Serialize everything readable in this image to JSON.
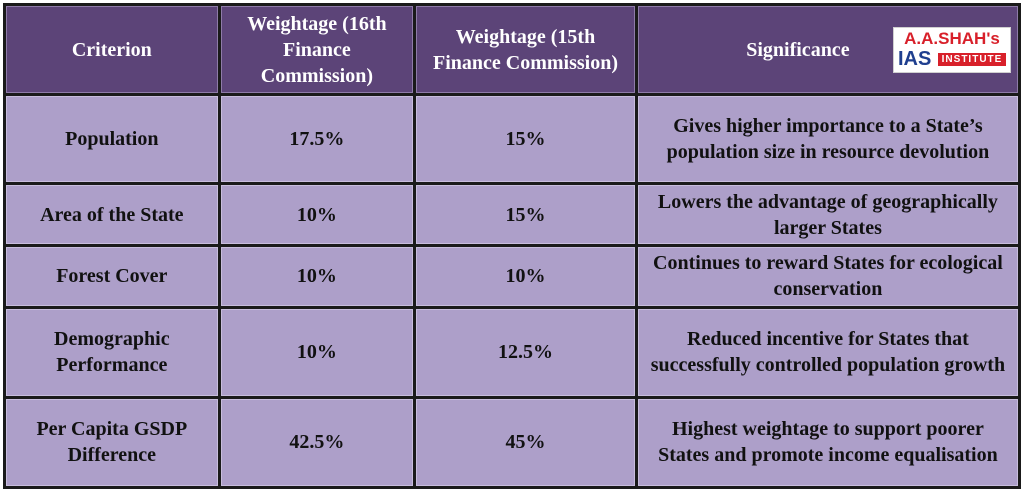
{
  "table": {
    "headers": {
      "criterion": "Criterion",
      "weight16": "Weightage (16th Finance Commission)",
      "weight15": "Weightage (15th Finance Commission)",
      "significance": "Significance"
    },
    "rows": [
      {
        "criterion": "Population",
        "weight16": "17.5%",
        "weight15": "15%",
        "significance": "Gives higher importance to a State’s population size in resource devolution"
      },
      {
        "criterion": "Area of the State",
        "weight16": "10%",
        "weight15": "15%",
        "significance": "Lowers the advantage of geographically larger States"
      },
      {
        "criterion": "Forest Cover",
        "weight16": "10%",
        "weight15": "10%",
        "significance": "Continues to reward States for ecological conservation"
      },
      {
        "criterion": "Demographic Performance",
        "weight16": "10%",
        "weight15": "12.5%",
        "significance": "Reduced incentive for States that successfully controlled population growth"
      },
      {
        "criterion": "Per Capita GSDP Difference",
        "weight16": "42.5%",
        "weight15": "45%",
        "significance": "Highest weightage to support poorer States and promote income equalisation"
      }
    ]
  },
  "logo": {
    "top": "A.A.SHAH's",
    "ias": "IAS",
    "institute": "INSTITUTE"
  },
  "colors": {
    "header_bg": "#5c4478",
    "cell_bg": "#ad9fc9",
    "grid": "#1a1a1a",
    "logo_red": "#d8202a",
    "logo_blue": "#1f3f8f"
  }
}
